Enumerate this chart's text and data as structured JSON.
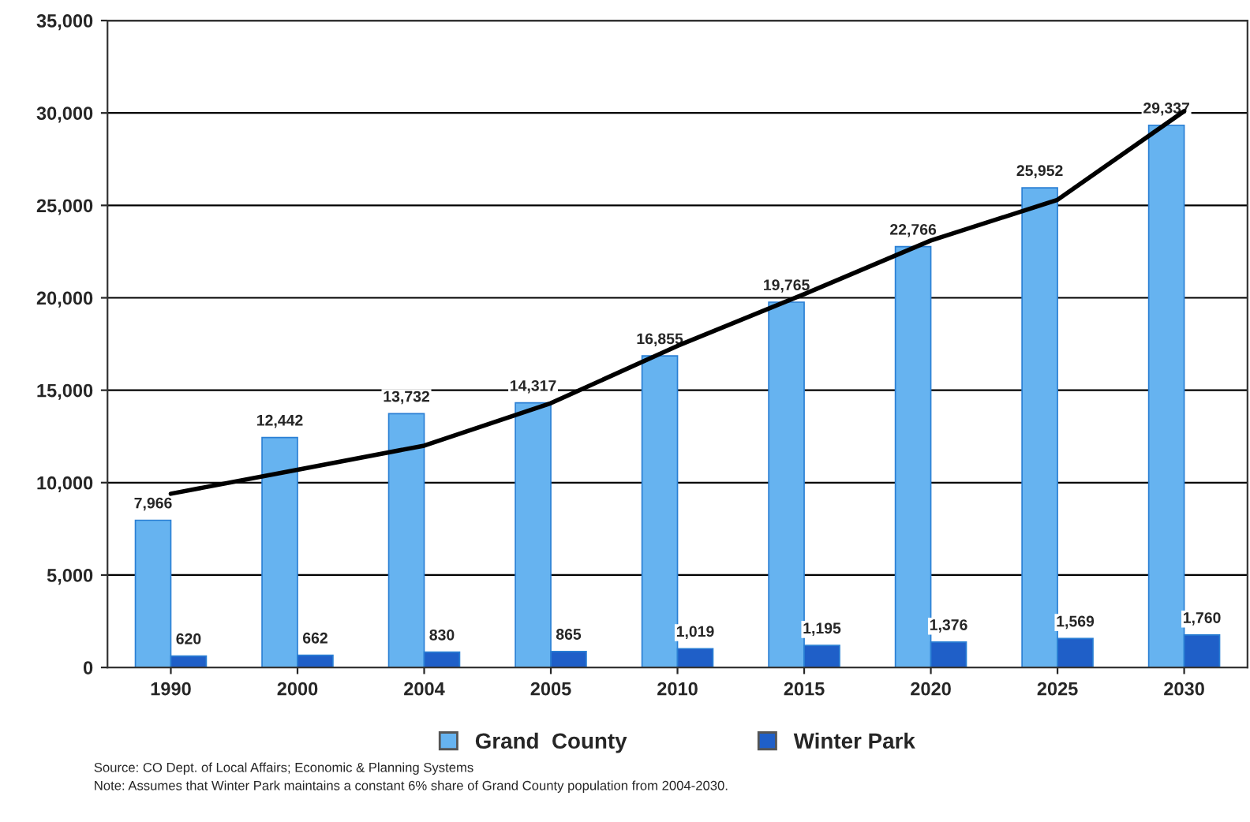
{
  "chart_data": {
    "type": "bar",
    "categories": [
      "1990",
      "2000",
      "2004",
      "2005",
      "2010",
      "2015",
      "2020",
      "2025",
      "2030"
    ],
    "series": [
      {
        "name": "Grand  County",
        "color": "#66b3f0",
        "values": [
          7966,
          12442,
          13732,
          14317,
          16855,
          19765,
          22766,
          25952,
          29337
        ],
        "value_labels": [
          "7,966",
          "12,442",
          "13,732",
          "14,317",
          "16,855",
          "19,765",
          "22,766",
          "25,952",
          "29,337"
        ]
      },
      {
        "name": "Winter Park",
        "color": "#1f5fc8",
        "values": [
          620,
          662,
          830,
          865,
          1019,
          1195,
          1376,
          1569,
          1760
        ],
        "value_labels": [
          "620",
          "662",
          "830",
          "865",
          "1,019",
          "1,195",
          "1,376",
          "1,569",
          "1,760"
        ]
      },
      {
        "type": "line",
        "color": "#000000",
        "values": [
          9400,
          10700,
          12000,
          14300,
          17400,
          20200,
          23100,
          25300,
          30100
        ]
      }
    ],
    "ylim": [
      0,
      35000
    ],
    "yticks": [
      {
        "value": 0,
        "label": "0"
      },
      {
        "value": 5000,
        "label": "5,000"
      },
      {
        "value": 10000,
        "label": "10,000"
      },
      {
        "value": 15000,
        "label": "15,000"
      },
      {
        "value": 20000,
        "label": "20,000"
      },
      {
        "value": 25000,
        "label": "25,000"
      },
      {
        "value": 30000,
        "label": "30,000"
      },
      {
        "value": 35000,
        "label": "35,000"
      }
    ],
    "grid": "y",
    "legend": "bottom",
    "marker": "none",
    "line_style": "solid",
    "annotations": [
      "Source: CO Dept. of Local Affairs; Economic & Planning Systems",
      "Note: Assumes that Winter Park maintains a constant 6% share of Grand County population from 2004-2030."
    ]
  }
}
